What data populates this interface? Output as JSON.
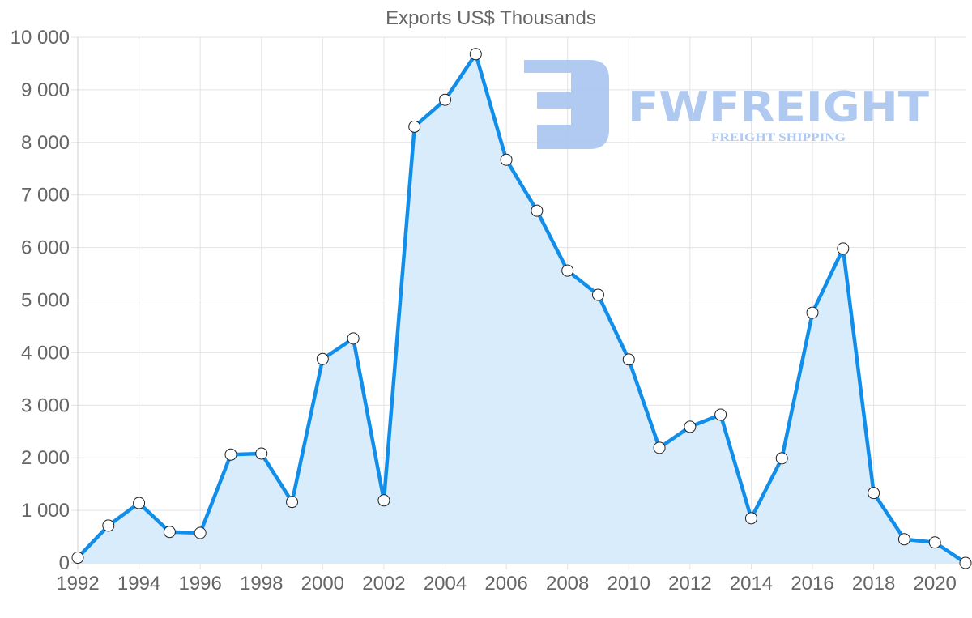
{
  "chart_data": {
    "type": "area",
    "title": "Exports US$ Thousands",
    "xlabel": "",
    "ylabel": "",
    "x": [
      1992,
      1993,
      1994,
      1995,
      1996,
      1997,
      1998,
      1999,
      2000,
      2001,
      2002,
      2003,
      2004,
      2005,
      2006,
      2007,
      2008,
      2009,
      2010,
      2011,
      2012,
      2013,
      2014,
      2015,
      2016,
      2017,
      2018,
      2019,
      2020,
      2021
    ],
    "series": [
      {
        "name": "Exports US$ Thousands",
        "values": [
          100,
          710,
          1140,
          590,
          570,
          2060,
          2080,
          1160,
          3880,
          4270,
          1190,
          8300,
          8810,
          9680,
          7670,
          6700,
          5560,
          5100,
          3870,
          2190,
          2590,
          2820,
          850,
          1990,
          4760,
          5980,
          1330,
          450,
          390,
          0
        ],
        "line_color": "#118ee9",
        "fill_color": "#d7ebfb",
        "marker": "circle-white"
      }
    ],
    "ylim": [
      0,
      10000
    ],
    "y_ticks": [
      0,
      1000,
      2000,
      3000,
      4000,
      5000,
      6000,
      7000,
      8000,
      9000,
      10000
    ],
    "y_tick_labels": [
      "0",
      "1 000",
      "2 000",
      "3 000",
      "4 000",
      "5 000",
      "6 000",
      "7 000",
      "8 000",
      "9 000",
      "10 000"
    ],
    "x_tick_labels": [
      "1992",
      "1994",
      "1996",
      "1998",
      "2000",
      "2002",
      "2004",
      "2006",
      "2008",
      "2010",
      "2012",
      "2014",
      "2016",
      "2018",
      "2020"
    ],
    "grid": true,
    "legend": "none"
  },
  "watermark": {
    "brand": "FWFREIGHT",
    "tagline": "FREIGHT SHIPPING",
    "color": "#a8c4f0"
  }
}
